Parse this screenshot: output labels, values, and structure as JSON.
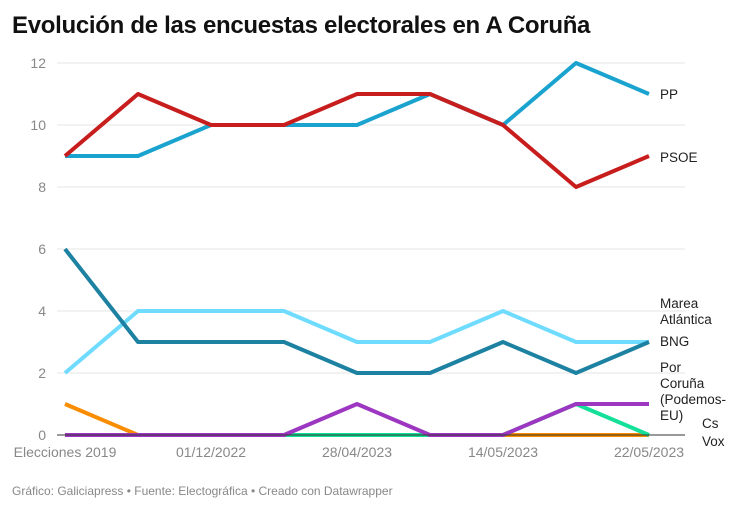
{
  "chart_data": {
    "type": "line",
    "title": "Evolución de las encuestas electorales en A Coruña",
    "categories": [
      "Elecciones 2019",
      "",
      "01/12/2022",
      "",
      "28/04/2023",
      "",
      "14/05/2023",
      "",
      "22/05/2023"
    ],
    "yticks": [
      0,
      2,
      4,
      6,
      8,
      10,
      12
    ],
    "ylim": [
      0,
      12
    ],
    "grid": true,
    "series": [
      {
        "name": "PP",
        "color": "#1aa3cf",
        "values": [
          9,
          9,
          10,
          10,
          10,
          11,
          10,
          12,
          11
        ]
      },
      {
        "name": "PSOE",
        "color": "#c71e1d",
        "values": [
          9,
          11,
          10,
          10,
          11,
          11,
          10,
          8,
          9
        ]
      },
      {
        "name": "Marea Atlántica",
        "color": "#6fdcff",
        "values": [
          2,
          4,
          4,
          4,
          3,
          3,
          4,
          3,
          3
        ]
      },
      {
        "name": "BNG",
        "color": "#1d81a2",
        "values": [
          6,
          3,
          3,
          3,
          2,
          2,
          3,
          2,
          3
        ]
      },
      {
        "name": "Cs",
        "color": "#fa8c00",
        "values": [
          1,
          0,
          0,
          0,
          0,
          0,
          0,
          0,
          0
        ]
      },
      {
        "name": "Vox",
        "color": "#15e09a",
        "values": [
          0,
          0,
          0,
          0,
          0,
          0,
          0,
          1,
          0
        ]
      },
      {
        "name": "Por Coruña (Podemos-EU)",
        "color": "#9d36c0",
        "values": [
          0,
          0,
          0,
          0,
          1,
          0,
          0,
          1,
          1
        ]
      }
    ]
  },
  "footer": "Gráfico: Galiciapress • Fuente: Electográfica • Creado con Datawrapper"
}
